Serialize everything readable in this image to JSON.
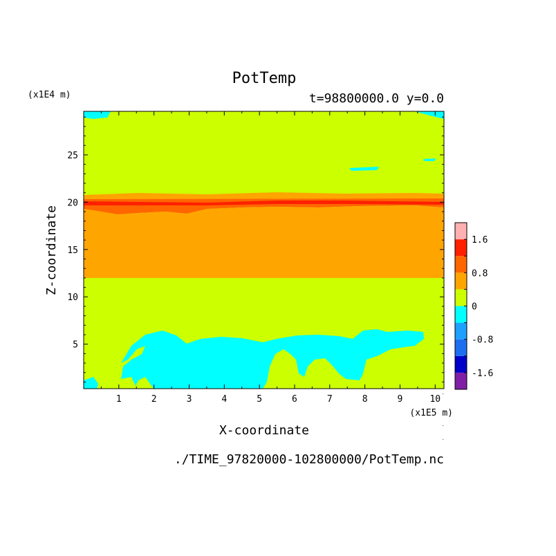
{
  "chart_data": {
    "type": "heatmap",
    "title": "PotTemp",
    "subtitle": "t=98800000.0 y=0.0",
    "xlabel": "X-coordinate",
    "ylabel": "Z-coordinate",
    "x_unit": "(x1E5 m)",
    "y_unit": "(x1E4 m)",
    "footer": "./TIME_97820000-102800000/PotTemp.nc",
    "xlim": [
      0,
      10.25
    ],
    "ylim": [
      0.3,
      29.6
    ],
    "x_ticks": [
      1,
      2,
      3,
      4,
      5,
      6,
      7,
      8,
      9,
      10
    ],
    "y_ticks": [
      5,
      10,
      15,
      20,
      25
    ],
    "colorbar": {
      "levels": [
        -2.0,
        -1.6,
        -1.2,
        -0.8,
        -0.4,
        0,
        0.4,
        0.8,
        1.2,
        1.6,
        2.0
      ],
      "colors": [
        "#7f1fa8",
        "#0000c8",
        "#1e6ff0",
        "#1ea0ff",
        "#00ffff",
        "#ccff00",
        "#ffa500",
        "#ff6600",
        "#ff2000",
        "#ffb0b0"
      ],
      "tick_labels": [
        "1.6",
        "0.8",
        "0",
        "-0.8",
        "-1.6"
      ],
      "tick_values": [
        1.6,
        0.8,
        0,
        -0.8,
        -1.6
      ]
    },
    "bands": [
      {
        "z_min": 0.3,
        "z_max": 12.0,
        "value_range": [
          0,
          0.4
        ]
      },
      {
        "z_min": 12.0,
        "z_max": 19.5,
        "value_range": [
          0.4,
          0.8
        ]
      },
      {
        "z_min": 19.5,
        "z_max": 21.0,
        "value_range": [
          0.8,
          1.2
        ]
      },
      {
        "z_min": 20.0,
        "z_max": 20.4,
        "value_range": [
          1.2,
          1.6
        ]
      },
      {
        "z_min": 21.0,
        "z_max": 29.6,
        "value_range": [
          0,
          0.4
        ]
      }
    ]
  }
}
